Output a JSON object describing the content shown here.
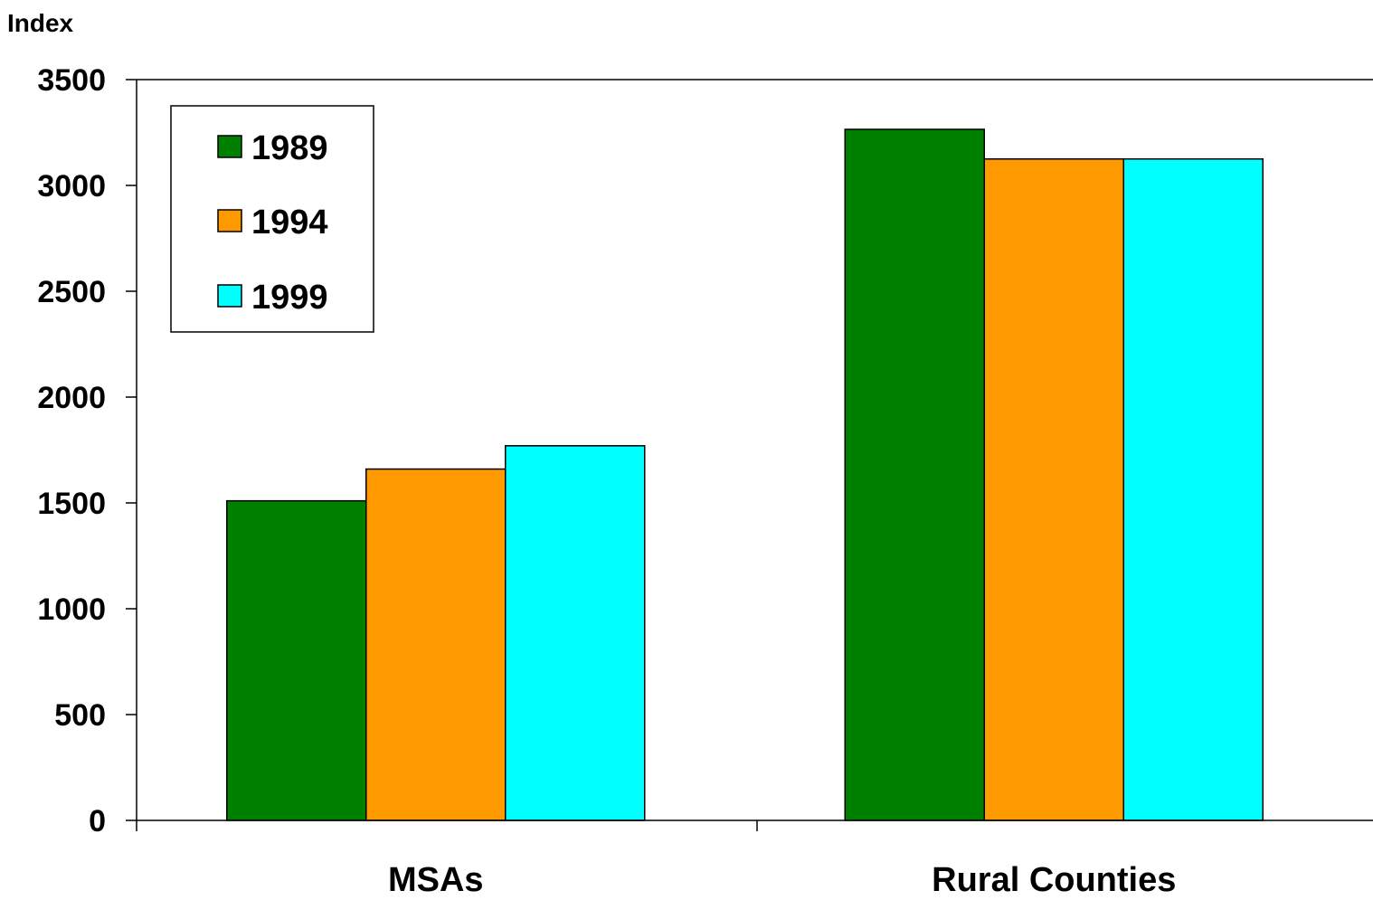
{
  "chart_data": {
    "type": "bar",
    "ylabel": "Index",
    "ylim": [
      0,
      3500
    ],
    "yticks": [
      0,
      500,
      1000,
      1500,
      2000,
      2500,
      3000,
      3500
    ],
    "categories": [
      "MSAs",
      "Rural Counties"
    ],
    "series": [
      {
        "name": "1989",
        "values": [
          1510,
          3265
        ],
        "color": "#008000"
      },
      {
        "name": "1994",
        "values": [
          1660,
          3125
        ],
        "color": "#FF9900"
      },
      {
        "name": "1999",
        "values": [
          1770,
          3125
        ],
        "color": "#00FFFF"
      }
    ],
    "grid": false,
    "legend_position": "top-left"
  }
}
